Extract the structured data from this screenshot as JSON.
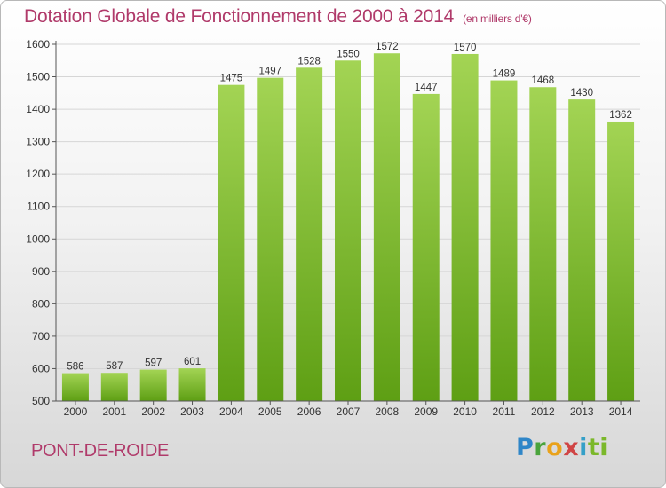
{
  "title": "Dotation Globale de Fonctionnement de 2000 à 2014",
  "subtitle": "(en milliers d'€)",
  "commune": "PONT-DE-ROIDE",
  "logo": {
    "parts": [
      "P",
      "r",
      "o",
      "x",
      "i",
      "ti"
    ]
  },
  "colors": {
    "title": "#b03a6a",
    "bar_light": "#9fd050",
    "bar_dark": "#5e9f14",
    "grid": "#d8d8d8"
  },
  "chart_data": {
    "type": "bar",
    "categories": [
      "2000",
      "2001",
      "2002",
      "2003",
      "2004",
      "2005",
      "2006",
      "2007",
      "2008",
      "2009",
      "2010",
      "2011",
      "2012",
      "2013",
      "2014"
    ],
    "values": [
      586,
      587,
      597,
      601,
      1475,
      1497,
      1528,
      1550,
      1572,
      1447,
      1570,
      1489,
      1468,
      1430,
      1362
    ],
    "title": "Dotation Globale de Fonctionnement de 2000 à 2014",
    "xlabel": "",
    "ylabel": "",
    "ylim": [
      500,
      1600
    ],
    "yticks": [
      500,
      600,
      700,
      800,
      900,
      1000,
      1100,
      1200,
      1300,
      1400,
      1500,
      1600
    ],
    "grid": true,
    "legend": "none"
  }
}
